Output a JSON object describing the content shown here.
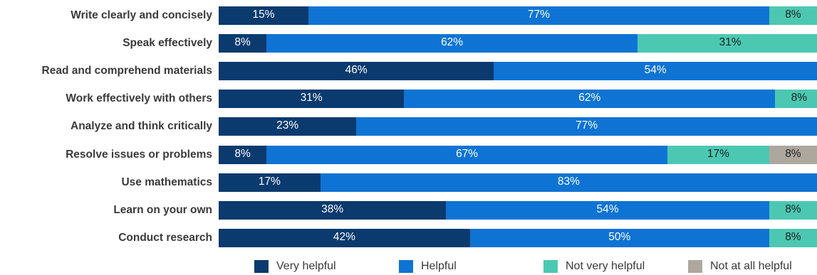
{
  "chart_data": {
    "type": "bar",
    "orientation": "horizontal",
    "stacked": true,
    "categories": [
      "Write clearly and concisely",
      "Speak effectively",
      "Read and comprehend materials",
      "Work effectively with others",
      "Analyze and think critically",
      "Resolve issues or problems",
      "Use mathematics",
      "Learn on your own",
      "Conduct research"
    ],
    "series": [
      {
        "name": "Very helpful",
        "color": "#0a3a6e",
        "text_color": "#ffffff",
        "values": [
          15,
          8,
          46,
          31,
          23,
          8,
          17,
          38,
          42
        ],
        "labels": [
          "15%",
          "8%",
          "46%",
          "31%",
          "23%",
          "8%",
          "17%",
          "38%",
          "42%"
        ]
      },
      {
        "name": "Helpful",
        "color": "#0f73d4",
        "text_color": "#ffffff",
        "values": [
          77,
          62,
          54,
          62,
          77,
          67,
          83,
          54,
          50
        ],
        "labels": [
          "77%",
          "62%",
          "54%",
          "62%",
          "77%",
          "67%",
          "83%",
          "54%",
          "50%"
        ]
      },
      {
        "name": "Not very helpful",
        "color": "#4cc8b2",
        "text_color": "#1e1e1e",
        "values": [
          8,
          31,
          0,
          8,
          0,
          17,
          0,
          8,
          8
        ],
        "labels": [
          "8%",
          "31%",
          "",
          "8%",
          "",
          "17%",
          "",
          "8%",
          "8%"
        ]
      },
      {
        "name": "Not at all helpful",
        "color": "#aea79e",
        "text_color": "#1e1e1e",
        "values": [
          0,
          0,
          0,
          0,
          0,
          8,
          0,
          0,
          0
        ],
        "labels": [
          "",
          "",
          "",
          "",
          "",
          "8%",
          "",
          "",
          ""
        ]
      }
    ],
    "xlim": [
      0,
      100
    ],
    "legend_position": "bottom",
    "grid": false
  }
}
